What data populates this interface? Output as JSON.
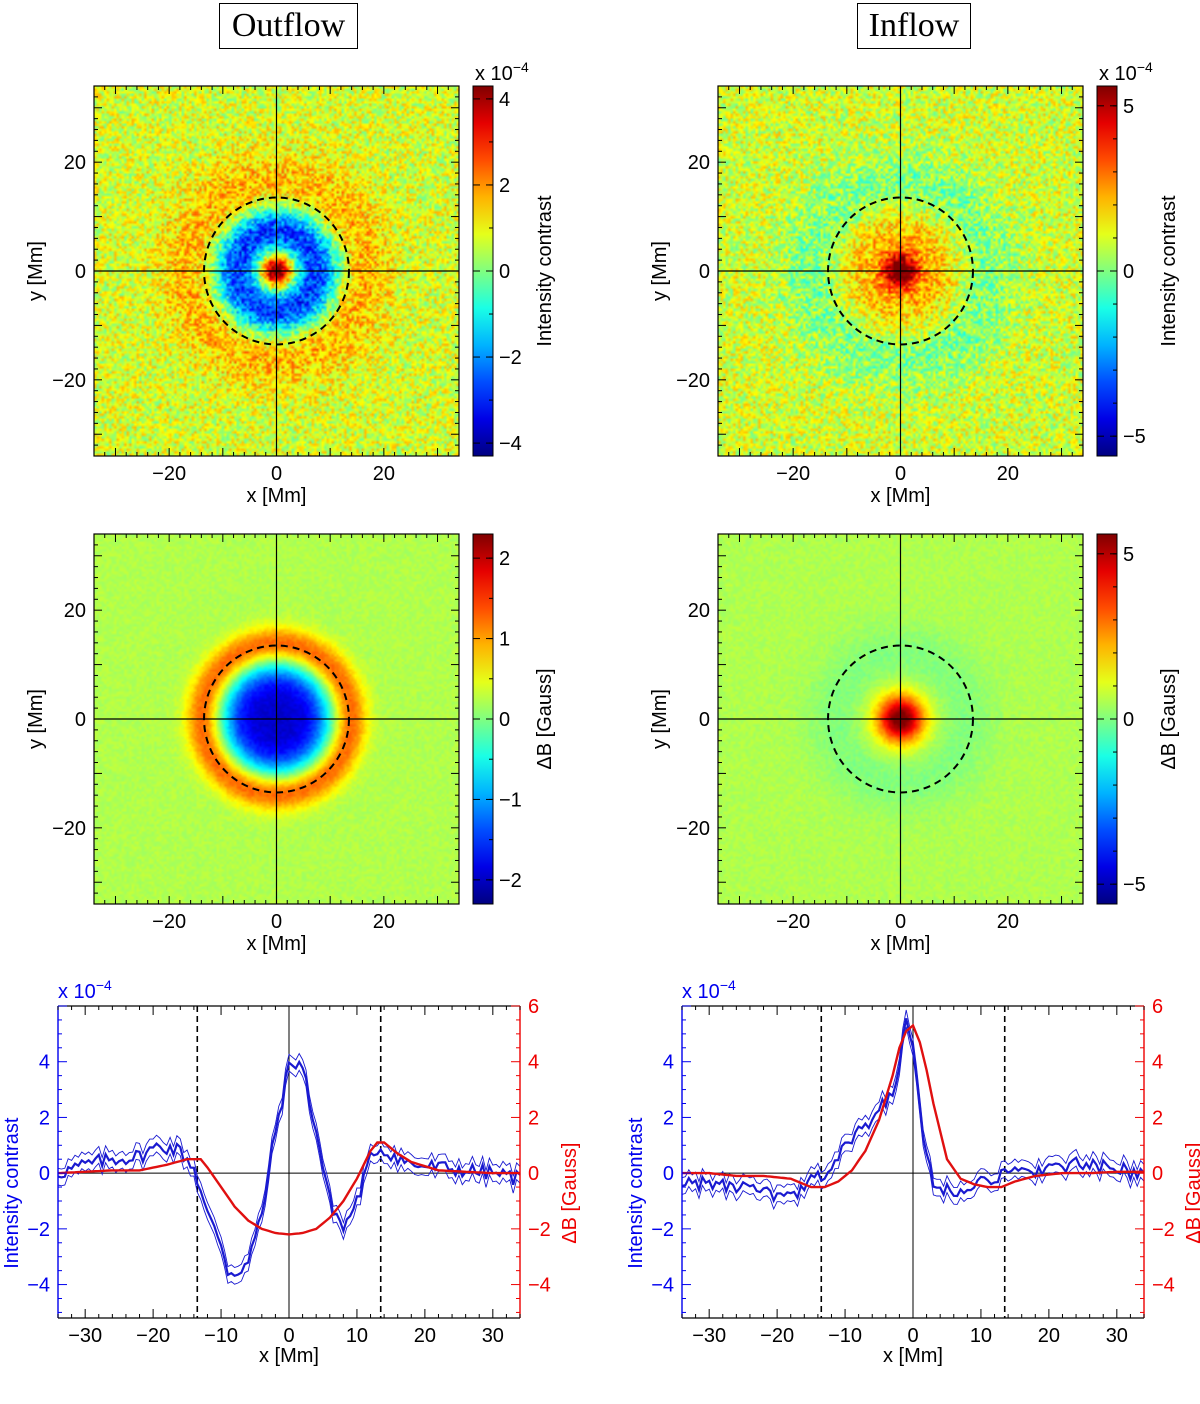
{
  "figure": {
    "columns": [
      {
        "id": "outflow",
        "title": "Outflow"
      },
      {
        "id": "inflow",
        "title": "Inflow"
      }
    ]
  },
  "colors": {
    "blue_axis": "#0000ee",
    "red_axis": "#ee0000",
    "profile_blue": "#1a1ad0",
    "profile_red": "#e01010",
    "jet": [
      "#00008f",
      "#0000ff",
      "#0080ff",
      "#00ffff",
      "#80ff80",
      "#ffff00",
      "#ff8000",
      "#ff0000",
      "#800000"
    ],
    "background_green": "#88f070"
  },
  "chart_data": [
    {
      "id": "outflow-intensity-map",
      "type": "heatmap",
      "column": "outflow",
      "xlabel": "x [Mm]",
      "ylabel": "y [Mm]",
      "xlim": [
        -34,
        34
      ],
      "ylim": [
        -34,
        34
      ],
      "xticks": [
        -20,
        0,
        20
      ],
      "yticks": [
        -20,
        0,
        20
      ],
      "colorbar": {
        "label": "Intensity contrast",
        "exponent": "x 10",
        "exponent_power": "−4",
        "range": [
          -4.3,
          4.3
        ],
        "ticks": [
          -4,
          -2,
          0,
          2,
          4
        ]
      },
      "dashed_circle_radius": 13.5,
      "features": [
        {
          "kind": "core",
          "radius": 2.0,
          "value": 4.2
        },
        {
          "kind": "ring",
          "radius": 7.5,
          "width": 3.2,
          "value": -3.7
        },
        {
          "kind": "ring",
          "radius": 15.5,
          "width": 4.5,
          "value": 1.0
        }
      ],
      "background": 0.4
    },
    {
      "id": "inflow-intensity-map",
      "type": "heatmap",
      "column": "inflow",
      "xlabel": "x [Mm]",
      "ylabel": "y [Mm]",
      "xlim": [
        -34,
        34
      ],
      "ylim": [
        -34,
        34
      ],
      "xticks": [
        -20,
        0,
        20
      ],
      "yticks": [
        -20,
        0,
        20
      ],
      "colorbar": {
        "label": "Intensity contrast",
        "exponent": "x 10",
        "exponent_power": "−4",
        "range": [
          -5.6,
          5.6
        ],
        "ticks": [
          -5,
          0,
          5
        ]
      },
      "dashed_circle_radius": 13.5,
      "features": [
        {
          "kind": "core",
          "radius": 2.2,
          "value": 5.5
        },
        {
          "kind": "ring",
          "radius": 6.5,
          "width": 4.0,
          "value": 1.2
        },
        {
          "kind": "ring",
          "radius": 16.0,
          "width": 4.5,
          "value": -1.0
        }
      ],
      "background": 0.4
    },
    {
      "id": "outflow-field-map",
      "type": "heatmap",
      "column": "outflow",
      "xlabel": "x [Mm]",
      "ylabel": "y [Mm]",
      "xlim": [
        -34,
        34
      ],
      "ylim": [
        -34,
        34
      ],
      "xticks": [
        -20,
        0,
        20
      ],
      "yticks": [
        -20,
        0,
        20
      ],
      "colorbar": {
        "label": "ΔB [Gauss]",
        "range": [
          -2.3,
          2.3
        ],
        "ticks": [
          -2,
          -1,
          0,
          1,
          2
        ]
      },
      "dashed_circle_radius": 13.5,
      "features": [
        {
          "kind": "disk",
          "radius": 9.0,
          "value": -2.2
        },
        {
          "kind": "ring",
          "radius": 13.8,
          "width": 2.2,
          "value": 1.1
        }
      ],
      "background": 0.15
    },
    {
      "id": "inflow-field-map",
      "type": "heatmap",
      "column": "inflow",
      "xlabel": "x [Mm]",
      "ylabel": "y [Mm]",
      "xlim": [
        -34,
        34
      ],
      "ylim": [
        -34,
        34
      ],
      "xticks": [
        -20,
        0,
        20
      ],
      "yticks": [
        -20,
        0,
        20
      ],
      "colorbar": {
        "label": "ΔB [Gauss]",
        "range": [
          -5.6,
          5.6
        ],
        "ticks": [
          -5,
          0,
          5
        ]
      },
      "dashed_circle_radius": 13.5,
      "features": [
        {
          "kind": "core",
          "radius": 3.0,
          "value": 5.5
        },
        {
          "kind": "ring",
          "radius": 12.0,
          "width": 4.0,
          "value": -0.5
        }
      ],
      "background": 0.3
    },
    {
      "id": "outflow-profile",
      "type": "line",
      "column": "outflow",
      "xlabel": "x [Mm]",
      "xlim": [
        -34,
        34
      ],
      "xticks": [
        -30,
        -20,
        -10,
        0,
        10,
        20,
        30
      ],
      "left_axis": {
        "label": "Intensity contrast",
        "exponent": "x 10",
        "exponent_power": "−4",
        "range": [
          -5.2,
          6
        ],
        "ticks": [
          -4,
          -2,
          0,
          2,
          4
        ]
      },
      "right_axis": {
        "label": "ΔB [Gauss]",
        "range": [
          -5.2,
          6
        ],
        "ticks": [
          -4,
          -2,
          0,
          2,
          4,
          6
        ]
      },
      "dashed_x": [
        -13.5,
        13.5
      ],
      "series": [
        {
          "name": "Intensity contrast",
          "axis": "left",
          "uncertainty": 0.3,
          "x": [
            -34,
            -30,
            -26,
            -22,
            -19,
            -16,
            -14,
            -12,
            -10,
            -9,
            -8,
            -6,
            -4,
            -2,
            0,
            1,
            2,
            4,
            6,
            8,
            10,
            12,
            13,
            15,
            18,
            22,
            26,
            30,
            34
          ],
          "y": [
            0.0,
            0.3,
            0.5,
            0.6,
            1.0,
            0.8,
            0.2,
            -1.5,
            -2.5,
            -3.5,
            -3.6,
            -3.2,
            -1.5,
            1.5,
            3.8,
            4.0,
            3.8,
            1.5,
            -1.0,
            -2.0,
            -1.0,
            0.5,
            0.9,
            0.7,
            0.3,
            0.2,
            0.1,
            0.0,
            -0.2
          ]
        },
        {
          "name": "ΔB",
          "axis": "right",
          "x": [
            -34,
            -30,
            -26,
            -22,
            -18,
            -15,
            -13,
            -12,
            -10,
            -8,
            -6,
            -4,
            -2,
            0,
            2,
            4,
            6,
            8,
            10,
            12,
            13,
            14,
            16,
            18,
            22,
            26,
            30,
            34
          ],
          "y": [
            0.0,
            0.05,
            0.1,
            0.1,
            0.3,
            0.5,
            0.5,
            0.2,
            -0.5,
            -1.2,
            -1.7,
            -2.0,
            -2.15,
            -2.2,
            -2.15,
            -2.0,
            -1.6,
            -1.0,
            -0.2,
            0.8,
            1.1,
            1.1,
            0.7,
            0.4,
            0.1,
            0.05,
            0.0,
            0.0
          ]
        }
      ]
    },
    {
      "id": "inflow-profile",
      "type": "line",
      "column": "inflow",
      "xlabel": "x [Mm]",
      "xlim": [
        -34,
        34
      ],
      "xticks": [
        -30,
        -20,
        -10,
        0,
        10,
        20,
        30
      ],
      "left_axis": {
        "label": "Intensity contrast",
        "exponent": "x 10",
        "exponent_power": "−4",
        "range": [
          -5.2,
          6
        ],
        "ticks": [
          -4,
          -2,
          0,
          2,
          4
        ]
      },
      "right_axis": {
        "label": "ΔB [Gauss]",
        "range": [
          -5.2,
          6
        ],
        "ticks": [
          -4,
          -2,
          0,
          2,
          4,
          6
        ]
      },
      "dashed_x": [
        -13.5,
        13.5
      ],
      "series": [
        {
          "name": "Intensity contrast",
          "axis": "left",
          "uncertainty": 0.3,
          "x": [
            -34,
            -30,
            -26,
            -22,
            -19,
            -17,
            -15,
            -13,
            -11,
            -9,
            -7,
            -5,
            -3,
            -2,
            -1,
            0,
            1,
            2,
            3,
            4,
            6,
            8,
            10,
            12,
            15,
            20,
            25,
            30,
            34
          ],
          "y": [
            -0.3,
            -0.4,
            -0.5,
            -0.7,
            -0.9,
            -0.8,
            -0.3,
            0.0,
            0.6,
            1.2,
            1.7,
            2.2,
            3.0,
            4.0,
            5.3,
            4.5,
            2.5,
            0.5,
            -0.4,
            -0.6,
            -0.6,
            -0.4,
            -0.2,
            -0.2,
            0.0,
            0.2,
            0.3,
            0.1,
            0.0
          ]
        },
        {
          "name": "ΔB",
          "axis": "right",
          "x": [
            -34,
            -30,
            -26,
            -22,
            -18,
            -15,
            -13,
            -11,
            -9,
            -7,
            -5,
            -3,
            -2,
            -1,
            0,
            1,
            2,
            3,
            4,
            5,
            7,
            9,
            11,
            13,
            15,
            18,
            22,
            26,
            30,
            34
          ],
          "y": [
            0.0,
            0.0,
            -0.1,
            -0.1,
            -0.2,
            -0.5,
            -0.5,
            -0.3,
            0.1,
            0.8,
            1.9,
            3.5,
            4.5,
            5.1,
            5.3,
            4.7,
            3.7,
            2.5,
            1.5,
            0.5,
            -0.2,
            -0.4,
            -0.5,
            -0.5,
            -0.3,
            -0.1,
            0.0,
            0.0,
            0.05,
            0.05
          ]
        }
      ]
    }
  ]
}
